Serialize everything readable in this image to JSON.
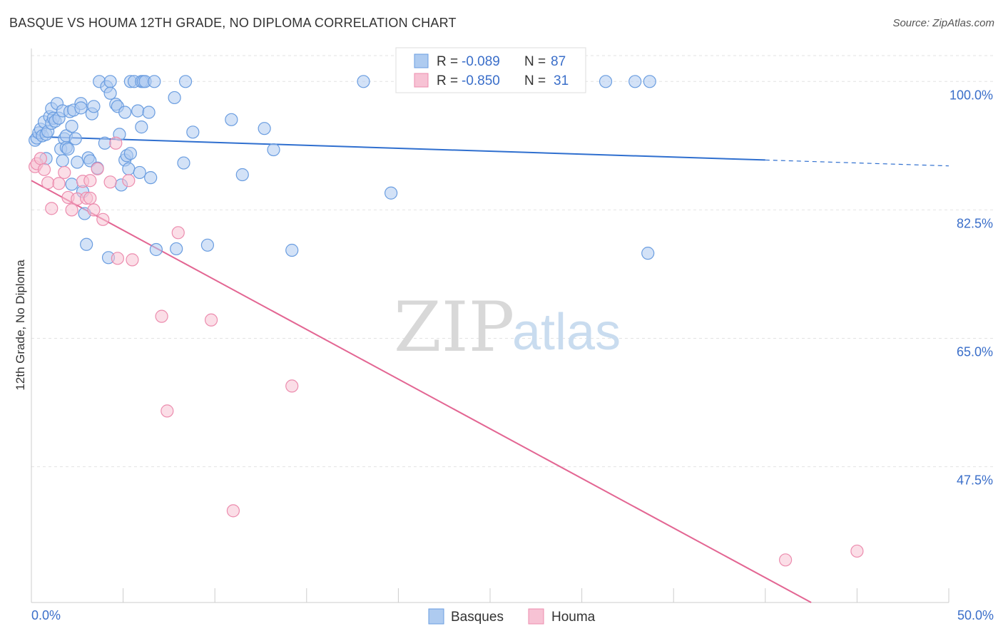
{
  "header": {
    "title": "BASQUE VS HOUMA 12TH GRADE, NO DIPLOMA CORRELATION CHART",
    "source": "Source: ZipAtlas.com"
  },
  "watermark": {
    "zip": "ZIP",
    "atlas": "atlas"
  },
  "colors": {
    "basques_fill": "#aecbf0",
    "basques_stroke": "#6a9de0",
    "basques_line": "#2f6fcf",
    "houma_fill": "#f7c2d4",
    "houma_stroke": "#ec8cae",
    "houma_line": "#e36693",
    "grid": "#e3e3e3",
    "axis_text": "#3a6ec9"
  },
  "stats": {
    "basques": {
      "r_label": "R = ",
      "r_value": "-0.089",
      "n_label": "N = ",
      "n_value": "87"
    },
    "houma": {
      "r_label": "R = ",
      "r_value": "-0.850",
      "n_label": "N = ",
      "n_value": "31"
    }
  },
  "chart_data": {
    "type": "scatter",
    "title": "BASQUE VS HOUMA 12TH GRADE, NO DIPLOMA CORRELATION CHART",
    "xlabel": "",
    "ylabel": "12th Grade, No Diploma",
    "xlim": [
      0,
      50
    ],
    "ylim": [
      29,
      104.5
    ],
    "x_tick_labels": [
      "0.0%",
      "50.0%"
    ],
    "y_ticks": [
      100,
      82.5,
      65,
      47.5
    ],
    "y_tick_labels": [
      "100.0%",
      "82.5%",
      "65.0%",
      "47.5%"
    ],
    "grid": true,
    "legend_position": "bottom-center",
    "series": [
      {
        "name": "Basques",
        "points": [
          [
            0.2,
            92.0
          ],
          [
            0.3,
            92.3
          ],
          [
            0.4,
            93.0
          ],
          [
            0.5,
            93.5
          ],
          [
            0.6,
            92.6
          ],
          [
            0.7,
            94.5
          ],
          [
            0.8,
            92.8
          ],
          [
            0.8,
            89.5
          ],
          [
            0.9,
            93.2
          ],
          [
            1.0,
            95.2
          ],
          [
            1.1,
            96.3
          ],
          [
            1.1,
            94.3
          ],
          [
            1.2,
            95.0
          ],
          [
            1.3,
            94.6
          ],
          [
            1.4,
            97.0
          ],
          [
            1.5,
            95.0
          ],
          [
            1.6,
            90.8
          ],
          [
            1.7,
            96.0
          ],
          [
            1.7,
            89.2
          ],
          [
            1.8,
            92.2
          ],
          [
            1.9,
            91.0
          ],
          [
            1.9,
            92.6
          ],
          [
            2.0,
            90.8
          ],
          [
            2.1,
            95.9
          ],
          [
            2.2,
            93.9
          ],
          [
            2.2,
            86.0
          ],
          [
            2.3,
            96.1
          ],
          [
            2.4,
            92.2
          ],
          [
            2.5,
            89.0
          ],
          [
            2.7,
            97.0
          ],
          [
            2.7,
            96.4
          ],
          [
            2.8,
            85.0
          ],
          [
            2.9,
            82.0
          ],
          [
            3.0,
            77.8
          ],
          [
            3.1,
            89.6
          ],
          [
            3.2,
            89.2
          ],
          [
            3.3,
            95.6
          ],
          [
            3.4,
            96.6
          ],
          [
            3.6,
            88.2
          ],
          [
            3.7,
            100.0
          ],
          [
            4.0,
            91.6
          ],
          [
            4.1,
            99.3
          ],
          [
            4.2,
            76.0
          ],
          [
            4.3,
            100.0
          ],
          [
            4.3,
            98.4
          ],
          [
            4.6,
            96.9
          ],
          [
            4.7,
            96.6
          ],
          [
            4.8,
            92.8
          ],
          [
            4.9,
            85.9
          ],
          [
            5.1,
            95.8
          ],
          [
            5.1,
            89.3
          ],
          [
            5.2,
            89.9
          ],
          [
            5.3,
            88.1
          ],
          [
            5.4,
            90.2
          ],
          [
            5.4,
            100.0
          ],
          [
            5.6,
            100.0
          ],
          [
            5.8,
            96.0
          ],
          [
            5.9,
            87.6
          ],
          [
            6.0,
            93.8
          ],
          [
            6.0,
            100.0
          ],
          [
            6.1,
            100.0
          ],
          [
            6.2,
            100.0
          ],
          [
            6.4,
            95.8
          ],
          [
            6.5,
            86.9
          ],
          [
            6.7,
            100.0
          ],
          [
            6.8,
            77.1
          ],
          [
            7.8,
            97.8
          ],
          [
            7.9,
            77.2
          ],
          [
            8.3,
            88.9
          ],
          [
            8.4,
            100.0
          ],
          [
            8.8,
            93.1
          ],
          [
            9.6,
            77.7
          ],
          [
            10.9,
            94.8
          ],
          [
            11.5,
            87.3
          ],
          [
            12.7,
            93.6
          ],
          [
            13.2,
            90.7
          ],
          [
            14.2,
            77.0
          ],
          [
            18.1,
            100.0
          ],
          [
            19.6,
            84.8
          ],
          [
            23.9,
            100.0
          ],
          [
            27.9,
            100.0
          ],
          [
            29.0,
            100.0
          ],
          [
            29.7,
            100.0
          ],
          [
            31.3,
            100.0
          ],
          [
            32.9,
            100.0
          ],
          [
            33.6,
            76.6
          ],
          [
            33.7,
            100.0
          ]
        ],
        "trend": {
          "x1": 0,
          "y1": 92.5,
          "x2": 40,
          "y2": 89.3,
          "dashed_to_x": 50,
          "dashed_to_y": 88.5
        }
      },
      {
        "name": "Houma",
        "points": [
          [
            0.2,
            88.4
          ],
          [
            0.3,
            88.8
          ],
          [
            0.5,
            89.5
          ],
          [
            0.7,
            88.0
          ],
          [
            0.9,
            86.2
          ],
          [
            1.1,
            82.7
          ],
          [
            1.5,
            86.1
          ],
          [
            1.8,
            87.6
          ],
          [
            2.0,
            84.2
          ],
          [
            2.2,
            82.5
          ],
          [
            2.5,
            84.0
          ],
          [
            2.8,
            86.4
          ],
          [
            3.0,
            84.1
          ],
          [
            3.2,
            86.5
          ],
          [
            3.2,
            84.1
          ],
          [
            3.4,
            82.5
          ],
          [
            3.6,
            88.1
          ],
          [
            3.9,
            81.2
          ],
          [
            4.3,
            86.3
          ],
          [
            4.6,
            91.6
          ],
          [
            4.7,
            75.9
          ],
          [
            5.3,
            86.5
          ],
          [
            5.5,
            75.7
          ],
          [
            7.1,
            68.0
          ],
          [
            7.4,
            55.1
          ],
          [
            8.0,
            79.4
          ],
          [
            9.8,
            67.5
          ],
          [
            11.0,
            41.5
          ],
          [
            14.2,
            58.5
          ],
          [
            41.1,
            34.8
          ],
          [
            45.0,
            36.0
          ]
        ],
        "trend": {
          "x1": 0,
          "y1": 86.5,
          "x2": 42.5,
          "y2": 29
        }
      }
    ]
  }
}
